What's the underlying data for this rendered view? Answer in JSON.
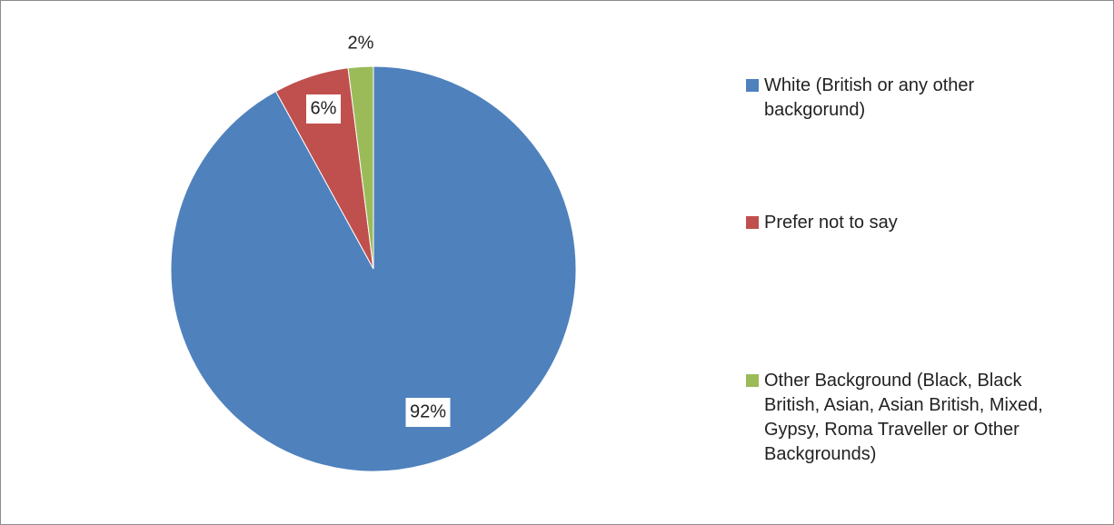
{
  "chart_data": {
    "type": "pie",
    "title": "",
    "slices": [
      {
        "label": "White (British or any other backgorund)",
        "value": 92,
        "display": "92%",
        "color": "#4F81BD"
      },
      {
        "label": "Prefer not to say",
        "value": 6,
        "display": "6%",
        "color": "#C0504D"
      },
      {
        "label": "Other Background (Black, Black British, Asian, Asian British, Mixed, Gypsy, Roma Traveller or Other Backgrounds)",
        "value": 2,
        "display": "2%",
        "color": "#9BBB59"
      }
    ],
    "start_angle": "12 o'clock",
    "direction": "clockwise",
    "legend_position": "right"
  }
}
